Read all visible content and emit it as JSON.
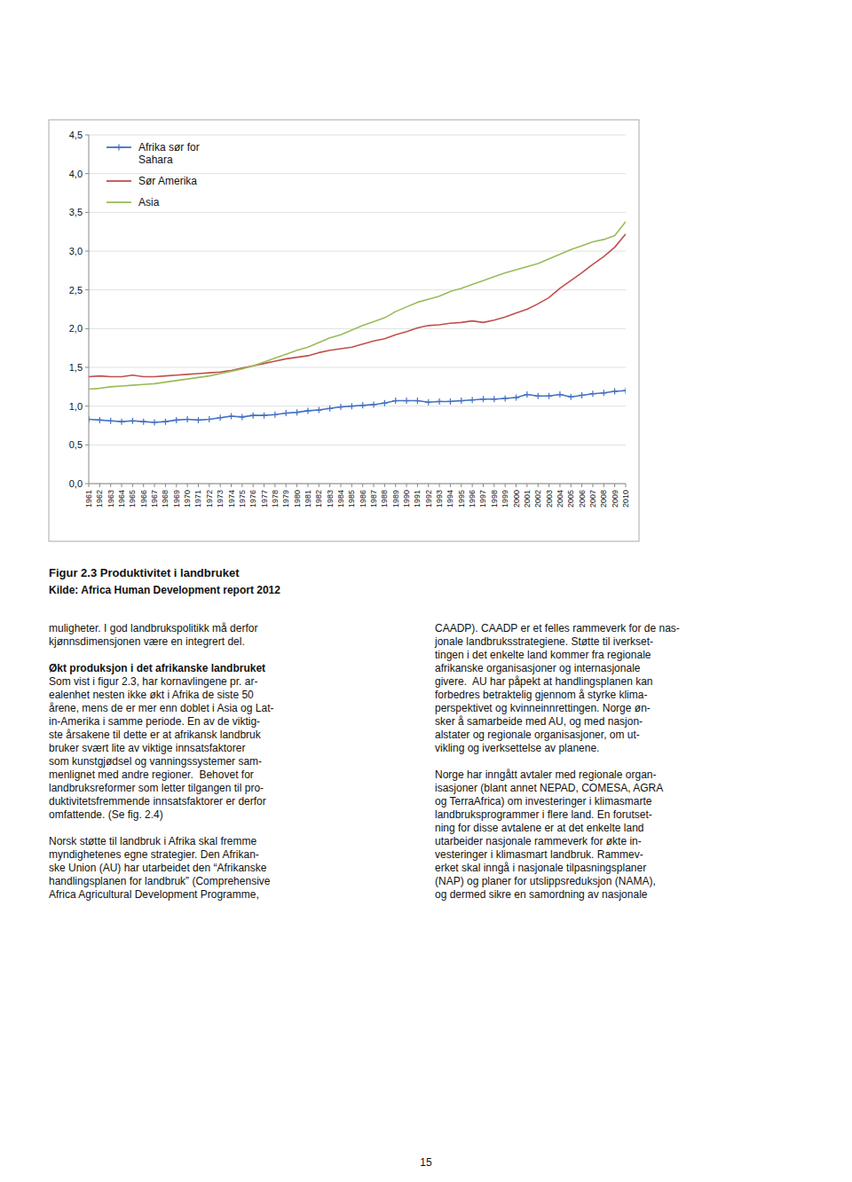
{
  "chart_data": {
    "type": "line",
    "title": "Figur 2.3 Produktivitet i landbruket",
    "source": "Kilde: Africa Human Development report 2012",
    "x": [
      1961,
      1962,
      1963,
      1964,
      1965,
      1966,
      1967,
      1968,
      1969,
      1970,
      1971,
      1972,
      1973,
      1974,
      1975,
      1976,
      1977,
      1978,
      1979,
      1980,
      1981,
      1982,
      1983,
      1984,
      1985,
      1986,
      1987,
      1988,
      1989,
      1990,
      1991,
      1992,
      1993,
      1994,
      1995,
      1996,
      1997,
      1998,
      1999,
      2000,
      2001,
      2002,
      2003,
      2004,
      2005,
      2006,
      2007,
      2008,
      2009,
      2010
    ],
    "series": [
      {
        "name": "Afrika sør for\nSahara",
        "color": "#4472C4",
        "marker": "plus",
        "values": [
          0.83,
          0.82,
          0.81,
          0.8,
          0.81,
          0.8,
          0.79,
          0.8,
          0.82,
          0.83,
          0.82,
          0.83,
          0.85,
          0.87,
          0.86,
          0.88,
          0.88,
          0.89,
          0.91,
          0.92,
          0.94,
          0.95,
          0.97,
          0.99,
          1.0,
          1.01,
          1.02,
          1.04,
          1.07,
          1.07,
          1.07,
          1.05,
          1.06,
          1.06,
          1.07,
          1.08,
          1.09,
          1.09,
          1.1,
          1.11,
          1.15,
          1.13,
          1.13,
          1.15,
          1.12,
          1.14,
          1.16,
          1.17,
          1.19,
          1.2
        ]
      },
      {
        "name": "Sør Amerika",
        "color": "#C0504D",
        "values": [
          1.38,
          1.39,
          1.38,
          1.38,
          1.4,
          1.38,
          1.38,
          1.39,
          1.4,
          1.41,
          1.42,
          1.43,
          1.44,
          1.46,
          1.49,
          1.52,
          1.55,
          1.58,
          1.61,
          1.63,
          1.65,
          1.69,
          1.72,
          1.74,
          1.76,
          1.8,
          1.84,
          1.87,
          1.92,
          1.96,
          2.01,
          2.04,
          2.05,
          2.07,
          2.08,
          2.1,
          2.08,
          2.11,
          2.15,
          2.2,
          2.25,
          2.32,
          2.4,
          2.52,
          2.62,
          2.72,
          2.83,
          2.93,
          3.05,
          3.22
        ]
      },
      {
        "name": "Asia",
        "color": "#9BBB59",
        "values": [
          1.22,
          1.23,
          1.25,
          1.26,
          1.27,
          1.28,
          1.29,
          1.31,
          1.33,
          1.35,
          1.37,
          1.39,
          1.42,
          1.45,
          1.48,
          1.52,
          1.57,
          1.62,
          1.67,
          1.72,
          1.76,
          1.82,
          1.88,
          1.92,
          1.98,
          2.04,
          2.09,
          2.14,
          2.22,
          2.28,
          2.34,
          2.38,
          2.42,
          2.48,
          2.52,
          2.57,
          2.62,
          2.67,
          2.72,
          2.76,
          2.8,
          2.84,
          2.9,
          2.96,
          3.02,
          3.07,
          3.12,
          3.15,
          3.2,
          3.38
        ]
      }
    ],
    "xlim": [
      1961,
      2010
    ],
    "xticks": [
      1961,
      1962,
      1963,
      1964,
      1965,
      1966,
      1967,
      1968,
      1969,
      1970,
      1971,
      1972,
      1973,
      1974,
      1975,
      1976,
      1977,
      1978,
      1979,
      1980,
      1981,
      1982,
      1983,
      1984,
      1985,
      1986,
      1987,
      1988,
      1989,
      1990,
      1991,
      1992,
      1993,
      1994,
      1995,
      1996,
      1997,
      1998,
      1999,
      2000,
      2001,
      2002,
      2003,
      2004,
      2005,
      2006,
      2007,
      2008,
      2009,
      2010
    ],
    "ylim": [
      0.0,
      4.5
    ],
    "yticks": [
      {
        "value": 0.0,
        "label": "0,0"
      },
      {
        "value": 0.5,
        "label": "0,5"
      },
      {
        "value": 1.0,
        "label": "1,0"
      },
      {
        "value": 1.5,
        "label": "1,5"
      },
      {
        "value": 2.0,
        "label": "2,0"
      },
      {
        "value": 2.5,
        "label": "2,5"
      },
      {
        "value": 3.0,
        "label": "3,0"
      },
      {
        "value": 3.5,
        "label": "3,5"
      },
      {
        "value": 4.0,
        "label": "4,0"
      },
      {
        "value": 4.5,
        "label": "4,5"
      }
    ],
    "grid": true,
    "legend": "upper left"
  },
  "page": {
    "left_column": [
      {
        "lines": [
          "muligheter. I god landbrukspolitikk må derfor",
          "kjønnsdimensjonen være en integrert del."
        ]
      },
      {
        "heading": "Økt produksjon i det afrikanske landbruket",
        "lines": [
          "Som vist i figur 2.3, har kornavlingene pr. ar-",
          "ealenhet nesten ikke økt i Afrika de siste 50",
          "årene, mens de er mer enn doblet i Asia og Lat-",
          "in-Amerika i samme periode. En av de viktig-",
          "ste årsakene til dette er at afrikansk landbruk",
          "bruker svært lite av viktige innsatsfaktorer",
          "som kunstgjødsel og vanningssystemer sam-",
          "menlignet med andre regioner.  Behovet for",
          "landbruksreformer som letter tilgangen til pro-",
          "duktivitetsfremmende innsatsfaktorer er derfor",
          "omfattende. (Se fig. 2.4)"
        ]
      },
      {
        "lines": [
          "Norsk støtte til landbruk i Afrika skal fremme",
          "myndighetenes egne strategier. Den Afrikan-",
          "ske Union (AU) har utarbeidet den “Afrikanske",
          "handlingsplanen for landbruk” (Comprehensive",
          "Africa Agricultural Development Programme,"
        ]
      }
    ],
    "right_column": [
      {
        "lines": [
          "CAADP). CAADP er et felles rammeverk for de nas-",
          "jonale landbruksstrategiene. Støtte til iverkset-",
          "tingen i det enkelte land kommer fra regionale",
          "afrikanske organisasjoner og internasjonale",
          "givere.  AU har påpekt at handlingsplanen kan",
          "forbedres betraktelig gjennom å styrke klima-",
          "perspektivet og kvinneinnrettingen. Norge øn-",
          "sker å samarbeide med AU, og med nasjon-",
          "alstater og regionale organisasjoner, om ut-",
          "vikling og iverksettelse av planene."
        ]
      },
      {
        "lines": [
          "Norge har inngått avtaler med regionale organ-",
          "isasjoner (blant annet NEPAD, COMESA, AGRA",
          "og TerraAfrica) om investeringer i klimasmarte",
          "landbruksprogrammer i flere land. En forutset-",
          "ning for disse avtalene er at det enkelte land",
          "utarbeider nasjonale rammeverk for økte in-",
          "vesteringer i klimasmart landbruk. Rammev-",
          "erket skal inngå i nasjonale tilpasningsplaner",
          "(NAP) og planer for utslippsreduksjon (NAMA),",
          "og dermed sikre en samordning av nasjonale"
        ]
      }
    ],
    "page_number": "15"
  }
}
